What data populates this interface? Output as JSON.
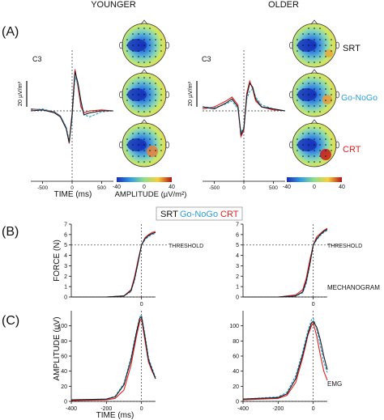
{
  "colors": {
    "srt": "#1a1a1a",
    "gonogo": "#2a9ed8",
    "crt": "#e02020",
    "threshold": "#555555"
  },
  "headers": {
    "younger": "YOUNGER",
    "older": "OLDER"
  },
  "panel_labels": {
    "a": "(A)",
    "b": "(B)",
    "c": "(C)"
  },
  "legend": {
    "srt": "SRT",
    "gonogo": "Go-NoGo",
    "crt": "CRT"
  },
  "conditions": {
    "srt": "SRT",
    "gonogo": "Go-NoGo",
    "crt": "CRT"
  },
  "eeg": {
    "channel": "C3",
    "scale_label": "20 µV/m²",
    "x_label": "TIME (ms)",
    "x_ticks": [
      "-500",
      "0",
      "500"
    ],
    "colorbar_label": "AMPLITUDE (µV/m²)",
    "colorbar_ticks": [
      "-40",
      "0",
      "40"
    ]
  },
  "force": {
    "y_label": "FORCE (N)",
    "y_ticks": [
      "0",
      "1",
      "2",
      "3",
      "4",
      "5",
      "6",
      "7"
    ],
    "threshold_label": "THRESHOLD",
    "mechanogram_label": "MECHANOGRAM"
  },
  "emg": {
    "y_label": "AMPLITUDE (µV)",
    "y_ticks": [
      "0",
      "20",
      "40",
      "60",
      "80",
      "100"
    ],
    "x_label": "TIME (ms)",
    "x_ticks": [
      "-400",
      "-200",
      "0"
    ],
    "emg_label": "EMG"
  },
  "chart_data": [
    {
      "type": "line",
      "panel": "A-younger",
      "ylabel": "20 µV/m²",
      "xlabel": "TIME (ms)",
      "xlim": [
        -700,
        700
      ],
      "x": [
        -700,
        -500,
        -300,
        -200,
        -100,
        -50,
        0,
        50,
        100,
        150,
        200,
        300,
        500,
        700
      ],
      "series": [
        {
          "name": "SRT",
          "values": [
            0,
            1,
            -2,
            -6,
            -18,
            -32,
            -4,
            40,
            28,
            10,
            -4,
            -2,
            0,
            0
          ]
        },
        {
          "name": "Go-NoGo",
          "values": [
            1,
            2,
            -1,
            -5,
            -16,
            -30,
            -8,
            35,
            26,
            8,
            -4,
            -6,
            -1,
            0
          ]
        },
        {
          "name": "CRT",
          "values": [
            2,
            1,
            -1,
            -5,
            -17,
            -33,
            -2,
            42,
            24,
            4,
            -2,
            0,
            1,
            0
          ]
        }
      ]
    },
    {
      "type": "line",
      "panel": "A-older",
      "ylabel": "20 µV/m²",
      "xlabel": "TIME (ms)",
      "xlim": [
        -700,
        700
      ],
      "x": [
        -700,
        -500,
        -300,
        -200,
        -100,
        -50,
        0,
        50,
        100,
        150,
        200,
        300,
        500,
        700
      ],
      "series": [
        {
          "name": "SRT",
          "values": [
            4,
            2,
            8,
            12,
            4,
            -24,
            -18,
            15,
            28,
            24,
            12,
            4,
            2,
            0
          ]
        },
        {
          "name": "Go-NoGo",
          "values": [
            4,
            3,
            7,
            10,
            2,
            -22,
            -16,
            12,
            20,
            22,
            14,
            6,
            2,
            0
          ]
        },
        {
          "name": "CRT",
          "values": [
            2,
            4,
            10,
            14,
            6,
            -26,
            -20,
            18,
            30,
            22,
            10,
            4,
            1,
            0
          ]
        }
      ]
    },
    {
      "type": "line",
      "panel": "B-younger",
      "ylabel": "FORCE (N)",
      "ylim": [
        0,
        7
      ],
      "xlim": [
        -400,
        80
      ],
      "x": [
        -400,
        -200,
        -100,
        -60,
        -40,
        -20,
        0,
        20,
        40,
        60,
        80
      ],
      "series": [
        {
          "name": "SRT",
          "values": [
            0,
            0,
            0.1,
            0.6,
            1.7,
            3.3,
            5.0,
            5.6,
            5.9,
            6.1,
            6.2
          ]
        },
        {
          "name": "Go-NoGo",
          "values": [
            0,
            0,
            0.1,
            0.5,
            1.6,
            3.2,
            5.0,
            5.5,
            5.8,
            6.0,
            6.1
          ]
        },
        {
          "name": "CRT",
          "values": [
            0,
            0,
            0.1,
            0.7,
            1.9,
            3.5,
            5.0,
            5.7,
            6.0,
            6.2,
            6.3
          ]
        }
      ]
    },
    {
      "type": "line",
      "panel": "B-older",
      "ylabel": "FORCE (N)",
      "ylim": [
        0,
        7
      ],
      "xlim": [
        -400,
        80
      ],
      "x": [
        -400,
        -200,
        -100,
        -60,
        -40,
        -20,
        0,
        20,
        40,
        60,
        80
      ],
      "series": [
        {
          "name": "SRT",
          "values": [
            0,
            0,
            0.1,
            0.5,
            1.5,
            3.1,
            5.0,
            5.6,
            6.0,
            6.3,
            6.5
          ]
        },
        {
          "name": "Go-NoGo",
          "values": [
            0,
            0,
            0.1,
            0.4,
            1.3,
            3.0,
            5.0,
            5.5,
            5.9,
            6.2,
            6.4
          ]
        },
        {
          "name": "CRT",
          "values": [
            0,
            0,
            0.2,
            0.7,
            1.8,
            3.5,
            5.0,
            5.8,
            6.1,
            6.4,
            6.6
          ]
        }
      ]
    },
    {
      "type": "line",
      "panel": "C-younger",
      "ylabel": "AMPLITUDE (µV)",
      "xlabel": "TIME (ms)",
      "ylim": [
        0,
        120
      ],
      "xlim": [
        -400,
        80
      ],
      "x": [
        -400,
        -200,
        -150,
        -100,
        -60,
        -30,
        -10,
        0,
        20,
        40,
        60,
        80
      ],
      "series": [
        {
          "name": "SRT",
          "values": [
            2,
            3,
            6,
            22,
            55,
            90,
            110,
            112,
            85,
            55,
            42,
            30
          ]
        },
        {
          "name": "Go-NoGo",
          "values": [
            2,
            3,
            7,
            24,
            58,
            92,
            112,
            114,
            88,
            58,
            44,
            32
          ]
        },
        {
          "name": "CRT",
          "values": [
            1,
            2,
            4,
            15,
            48,
            85,
            106,
            110,
            80,
            52,
            40,
            30
          ]
        }
      ]
    },
    {
      "type": "line",
      "panel": "C-older",
      "ylabel": "AMPLITUDE (µV)",
      "xlabel": "TIME (ms)",
      "ylim": [
        0,
        120
      ],
      "xlim": [
        -400,
        80
      ],
      "x": [
        -400,
        -200,
        -150,
        -100,
        -60,
        -30,
        -10,
        0,
        20,
        40,
        60,
        80
      ],
      "series": [
        {
          "name": "SRT",
          "values": [
            3,
            5,
            10,
            30,
            62,
            90,
            104,
            106,
            98,
            82,
            60,
            42
          ]
        },
        {
          "name": "Go-NoGo",
          "values": [
            3,
            6,
            12,
            34,
            66,
            94,
            108,
            110,
            96,
            74,
            52,
            38
          ]
        },
        {
          "name": "CRT",
          "values": [
            2,
            4,
            8,
            25,
            58,
            88,
            100,
            104,
            86,
            62,
            40,
            28
          ]
        }
      ]
    }
  ]
}
